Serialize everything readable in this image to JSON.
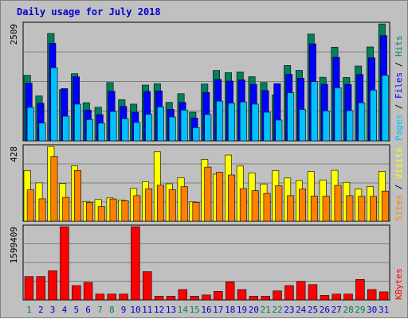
{
  "page": {
    "title": "Daily usage for July 2018",
    "colors": {
      "background": "#c0c0c0",
      "title": "#0000cc",
      "hits": "#00805c",
      "files": "#0000ff",
      "pages": "#00c0ff",
      "visits": "#ffff00",
      "sites": "#ff8000",
      "kbytes": "#ff0000",
      "weekend_day_label": "#00805c",
      "weekday_label": "#0000cc"
    }
  },
  "chart_data": [
    {
      "type": "bar",
      "panel": "hits-files-pages",
      "categories": [
        "1",
        "2",
        "3",
        "4",
        "5",
        "6",
        "7",
        "8",
        "9",
        "10",
        "11",
        "12",
        "13",
        "14",
        "15",
        "16",
        "17",
        "18",
        "19",
        "20",
        "21",
        "22",
        "23",
        "24",
        "25",
        "26",
        "27",
        "28",
        "29",
        "30",
        "31"
      ],
      "weekend_days": [
        "1",
        "7",
        "8",
        "14",
        "15",
        "21",
        "22",
        "28",
        "29"
      ],
      "ylabel": [
        "Pages",
        "Files",
        "Hits"
      ],
      "y_tick_label": "2509",
      "ylim": [
        0,
        2509
      ],
      "grid": true,
      "series": [
        {
          "name": "Hits",
          "color": "#00805c",
          "values": [
            1405,
            962,
            2303,
            1094,
            1438,
            818,
            718,
            1250,
            883,
            787,
            1195,
            1226,
            824,
            1011,
            615,
            1219,
            1509,
            1463,
            1477,
            1376,
            1249,
            985,
            1616,
            1510,
            2291,
            1364,
            2008,
            1358,
            1604,
            2014,
            2508
          ]
        },
        {
          "name": "Files",
          "color": "#0000ff",
          "values": [
            1236,
            806,
            2095,
            1120,
            1374,
            659,
            564,
            1063,
            737,
            614,
            1058,
            1071,
            676,
            824,
            489,
            1036,
            1318,
            1282,
            1307,
            1211,
            1079,
            1227,
            1426,
            1341,
            2080,
            1214,
            1790,
            1210,
            1421,
            1781,
            2258
          ]
        },
        {
          "name": "Pages",
          "color": "#00c0ff",
          "values": [
            719,
            380,
            1568,
            527,
            786,
            458,
            378,
            630,
            475,
            394,
            571,
            729,
            512,
            658,
            284,
            565,
            851,
            809,
            835,
            786,
            614,
            446,
            1031,
            673,
            1269,
            643,
            1138,
            649,
            816,
            1087,
            1407
          ]
        }
      ]
    },
    {
      "type": "bar",
      "panel": "visits-sites",
      "categories": [
        "1",
        "2",
        "3",
        "4",
        "5",
        "6",
        "7",
        "8",
        "9",
        "10",
        "11",
        "12",
        "13",
        "14",
        "15",
        "16",
        "17",
        "18",
        "19",
        "20",
        "21",
        "22",
        "23",
        "24",
        "25",
        "26",
        "27",
        "28",
        "29",
        "30",
        "31"
      ],
      "ylabel": [
        "Sites",
        "Visits"
      ],
      "y_tick_label": "428",
      "ylim": [
        0,
        428
      ],
      "grid": true,
      "series": [
        {
          "name": "Visits",
          "color": "#ffff00",
          "values": [
            290,
            219,
            427,
            216,
            316,
            113,
            124,
            133,
            121,
            187,
            226,
            397,
            214,
            249,
            110,
            354,
            269,
            378,
            315,
            276,
            213,
            289,
            247,
            232,
            284,
            236,
            291,
            222,
            184,
            198,
            285
          ]
        },
        {
          "name": "Sites",
          "color": "#ff8000",
          "values": [
            179,
            128,
            370,
            136,
            290,
            108,
            84,
            127,
            117,
            146,
            185,
            206,
            180,
            197,
            108,
            309,
            280,
            264,
            186,
            175,
            159,
            203,
            146,
            184,
            144,
            143,
            205,
            146,
            142,
            142,
            172
          ]
        }
      ]
    },
    {
      "type": "bar",
      "panel": "kbytes",
      "categories": [
        "1",
        "2",
        "3",
        "4",
        "5",
        "6",
        "7",
        "8",
        "9",
        "10",
        "11",
        "12",
        "13",
        "14",
        "15",
        "16",
        "17",
        "18",
        "19",
        "20",
        "21",
        "22",
        "23",
        "24",
        "25",
        "26",
        "27",
        "28",
        "29",
        "30",
        "31"
      ],
      "ylabel": "KBytes",
      "y_tick_label": "1599409",
      "ylim": [
        0,
        1599409
      ],
      "grid": true,
      "series": [
        {
          "name": "KBytes",
          "color": "#ff0000",
          "values": [
            509451,
            509451,
            636815,
            1598961,
            313530,
            382116,
            127389,
            127389,
            127389,
            1598961,
            617221,
            78406,
            78406,
            225389,
            78406,
            107802,
            186211,
            392034,
            225389,
            78406,
            78406,
            196017,
            313530,
            401834,
            333126,
            97999,
            127389,
            127389,
            446112,
            225389,
            176403
          ]
        }
      ]
    }
  ]
}
